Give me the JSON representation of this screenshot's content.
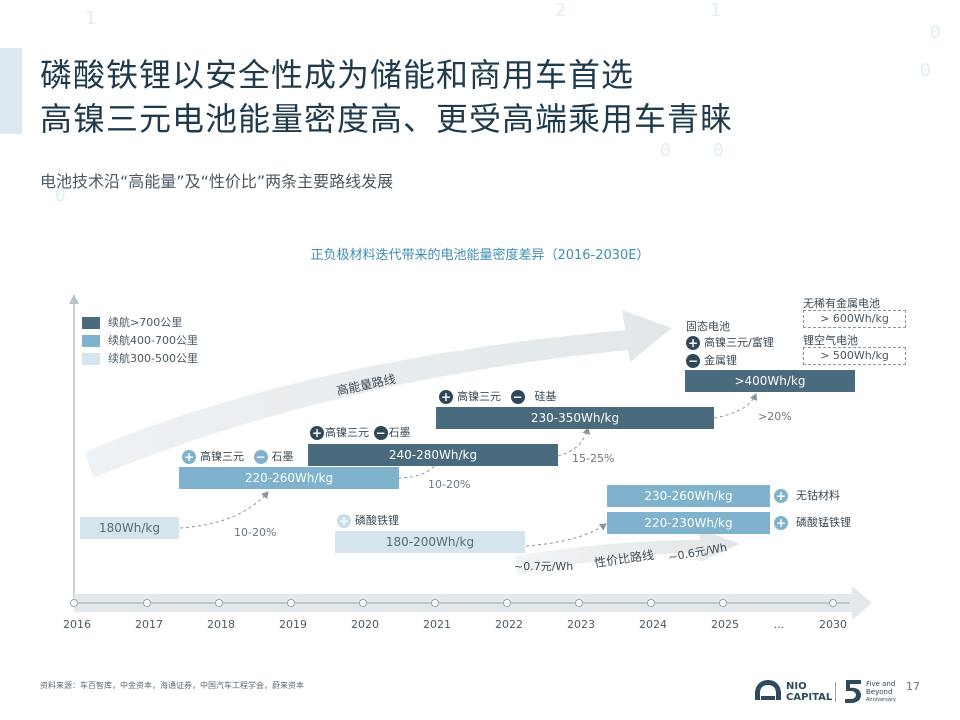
{
  "title": {
    "line1": "磷酸铁锂以安全性成为储能和商用车首选",
    "line2": "高镍三元电池能量密度高、更受高端乘用车青睐"
  },
  "subtitle": "电池技术沿“高能量”及“性价比”两条主要路线发展",
  "chart": {
    "title": "正负极材料迭代带来的电池能量密度差异（2016-2030E）",
    "legend": [
      {
        "label": "续航>700公里",
        "color": "#4a6b7e"
      },
      {
        "label": "续航400-700公里",
        "color": "#7fb2cc"
      },
      {
        "label": "续航300-500公里",
        "color": "#d4e5ed"
      }
    ],
    "route_high": "高能量路线",
    "route_value": "性价比路线",
    "years": [
      "2016",
      "2017",
      "2018",
      "2019",
      "2020",
      "2021",
      "2022",
      "2023",
      "2024",
      "2025",
      "...",
      "2030"
    ],
    "bars": {
      "b180": "180Wh/kg",
      "b220_260": "220-260Wh/kg",
      "b240_280": "240-280Wh/kg",
      "b230_350": "230-350Wh/kg",
      "b400": ">400Wh/kg",
      "b180_200": "180-200Wh/kg",
      "b230_260": "230-260Wh/kg",
      "b220_230": "220-230Wh/kg"
    },
    "growth": {
      "g1": "10-20%",
      "g2": "10-20%",
      "g3": "15-25%",
      "g4": ">20%"
    },
    "annotations": {
      "a2018_pos": "高镍三元",
      "a2018_neg": "石墨",
      "a2019_pos": "高镍三元",
      "a2019_neg": "石墨",
      "a2021_pos": "高镍三元",
      "a2021_neg": "硅基",
      "solid_state": "固态电池",
      "a2025_pos": "高镍三元/富锂",
      "a2025_neg": "金属锂",
      "lfp": "磷酸铁锂",
      "cobalt_free": "无钴材料",
      "lmfp": "磷酸锰铁锂"
    },
    "future": {
      "no_rare": "无稀有金属电池",
      "no_rare_val": "> 600Wh/kg",
      "li_air": "锂空气电池",
      "li_air_val": "> 500Wh/kg"
    },
    "cost": {
      "c1": "~0.7元/Wh",
      "c2": "~0.6元/Wh"
    }
  },
  "footer": {
    "source": "资料来源：车百智库，中金资本，海通证券，中国汽车工程学会，蔚来资本",
    "logo_text_1": "NIO",
    "logo_text_2": "CAPITAL",
    "anniv_line1": "Five and",
    "anniv_line2": "Beyond",
    "anniv_line3": "Anniversary",
    "page": "17"
  }
}
